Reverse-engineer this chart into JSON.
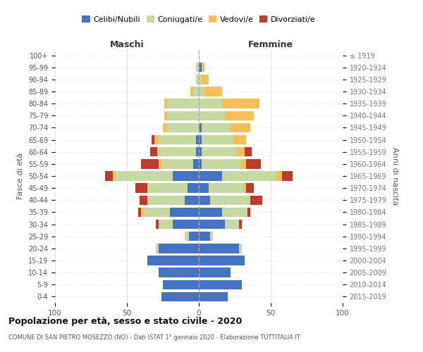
{
  "age_groups": [
    "100+",
    "95-99",
    "90-94",
    "85-89",
    "80-84",
    "75-79",
    "70-74",
    "65-69",
    "60-64",
    "55-59",
    "50-54",
    "45-49",
    "40-44",
    "35-39",
    "30-34",
    "25-29",
    "20-24",
    "15-19",
    "10-14",
    "5-9",
    "0-4"
  ],
  "birth_years": [
    "≤ 1919",
    "1920-1924",
    "1925-1929",
    "1930-1934",
    "1935-1939",
    "1940-1944",
    "1945-1949",
    "1950-1954",
    "1955-1959",
    "1960-1964",
    "1965-1969",
    "1970-1974",
    "1975-1979",
    "1980-1984",
    "1985-1989",
    "1990-1994",
    "1995-1999",
    "2000-2004",
    "2005-2009",
    "2010-2014",
    "2015-2019"
  ],
  "male": {
    "celibi": [
      0,
      0,
      0,
      0,
      0,
      0,
      0,
      2,
      2,
      4,
      18,
      8,
      10,
      20,
      18,
      7,
      28,
      36,
      28,
      25,
      26
    ],
    "coniugati": [
      0,
      2,
      2,
      4,
      22,
      22,
      22,
      26,
      27,
      22,
      40,
      28,
      26,
      18,
      10,
      3,
      2,
      0,
      0,
      0,
      0
    ],
    "vedovi": [
      0,
      0,
      0,
      2,
      2,
      2,
      3,
      3,
      0,
      2,
      2,
      0,
      0,
      2,
      0,
      0,
      0,
      0,
      0,
      0,
      0
    ],
    "divorziati": [
      0,
      0,
      0,
      0,
      0,
      0,
      0,
      2,
      5,
      12,
      5,
      8,
      5,
      2,
      2,
      0,
      0,
      0,
      0,
      0,
      0
    ]
  },
  "female": {
    "nubili": [
      0,
      2,
      0,
      0,
      0,
      0,
      2,
      2,
      2,
      2,
      16,
      7,
      8,
      16,
      18,
      8,
      28,
      32,
      22,
      30,
      20
    ],
    "coniugate": [
      0,
      0,
      2,
      4,
      16,
      18,
      20,
      22,
      24,
      27,
      38,
      24,
      28,
      18,
      10,
      2,
      2,
      0,
      0,
      0,
      0
    ],
    "vedove": [
      0,
      2,
      5,
      12,
      26,
      20,
      14,
      9,
      6,
      4,
      4,
      2,
      0,
      0,
      0,
      0,
      0,
      0,
      0,
      0,
      0
    ],
    "divorziate": [
      0,
      0,
      0,
      0,
      0,
      0,
      0,
      0,
      5,
      10,
      7,
      5,
      8,
      2,
      2,
      0,
      0,
      0,
      0,
      0,
      0
    ]
  },
  "colors": {
    "celibi": "#4472c4",
    "coniugati": "#c5d9a0",
    "vedovi": "#f5be58",
    "divorziati": "#c0392b"
  },
  "xlim": 100,
  "title": "Popolazione per età, sesso e stato civile - 2020",
  "subtitle": "COMUNE DI SAN PIETRO MOSEZZO (NO) - Dati ISTAT 1° gennaio 2020 - Elaborazione TUTTITALIA.IT",
  "xlabel_left": "Maschi",
  "xlabel_right": "Femmine",
  "ylabel_left": "Fasce di età",
  "ylabel_right": "Anni di nascita",
  "legend_labels": [
    "Celibi/Nubili",
    "Coniugati/e",
    "Vedovi/e",
    "Divorziati/e"
  ],
  "background_color": "#ffffff",
  "grid_color": "#cccccc"
}
